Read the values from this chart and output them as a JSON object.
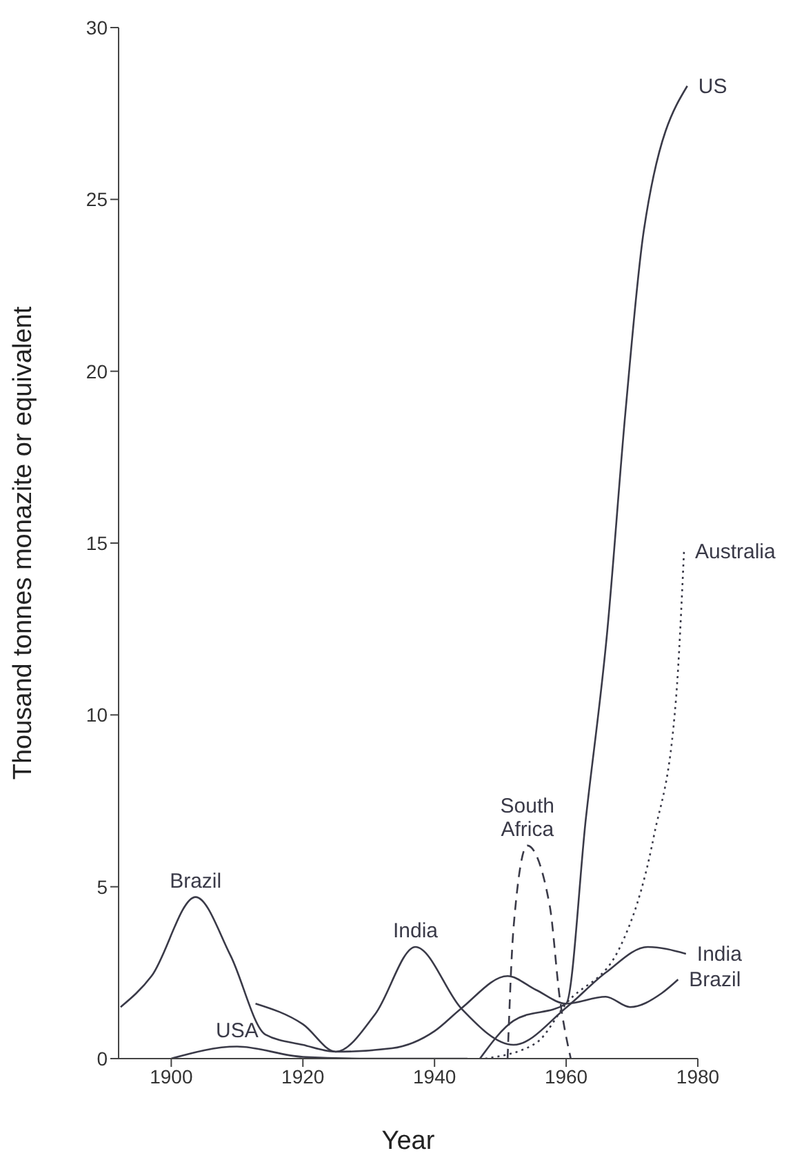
{
  "chart_data": {
    "type": "line",
    "xlabel": "Year",
    "ylabel": "Thousand tonnes monazite or equivalent",
    "xlim": [
      1892,
      1980
    ],
    "xticks": [
      1900,
      1920,
      1940,
      1960,
      1980
    ],
    "ylim": [
      0,
      30
    ],
    "yticks": [
      0,
      5,
      10,
      15,
      20,
      25,
      30
    ],
    "marker": "none",
    "series": [
      {
        "name": "Brazil",
        "color": "#3a3a48",
        "line_style": "solid",
        "x": [
          1892.3,
          1897,
          1903.7,
          1909,
          1914.3,
          1920,
          1925,
          1933.5,
          1940,
          1944,
          1951.1,
          1955.4,
          1960,
          1966,
          1969.7,
          1974.5,
          1977
        ],
        "values": [
          1.5,
          2.4,
          4.7,
          3,
          0.7,
          0.4,
          0.2,
          0.3,
          0.8,
          1.45,
          2.4,
          2,
          1.6,
          1.8,
          1.5,
          1.9,
          2.3
        ]
      },
      {
        "name": "USA",
        "color": "#3a3a48",
        "line_style": "solid",
        "x": [
          1900,
          1910,
          1920,
          1930,
          1945
        ],
        "values": [
          0,
          0.35,
          0.05,
          0,
          0
        ]
      },
      {
        "name": "India",
        "color": "#3a3a48",
        "line_style": "solid",
        "x": [
          1912.8,
          1920,
          1925,
          1931,
          1937.1,
          1944.1,
          1952,
          1960.1,
          1966,
          1972.4,
          1978.2
        ],
        "values": [
          1.6,
          1,
          0.2,
          1.3,
          3.25,
          1.45,
          0.4,
          1.5,
          2.5,
          3.25,
          3.05
        ]
      },
      {
        "name": "US",
        "color": "#3a3a48",
        "line_style": "solid",
        "x": [
          1946.9,
          1952,
          1960,
          1963,
          1966.2,
          1969,
          1971.8,
          1978.4
        ],
        "values": [
          0,
          1.1,
          1.6,
          7,
          12.35,
          18.8,
          24.1,
          28.3
        ]
      },
      {
        "name": "South Africa",
        "color": "#3a3a48",
        "line_style": "dashed",
        "x": [
          1951.1,
          1952,
          1954.1,
          1957.5,
          1959,
          1960.7
        ],
        "values": [
          0,
          3.8,
          6.2,
          4.45,
          1.8,
          0
        ]
      },
      {
        "name": "Australia",
        "color": "#3a3a48",
        "line_style": "dotted",
        "x": [
          1947.7,
          1955.4,
          1960,
          1968.2,
          1973.3,
          1976.7,
          1977.9
        ],
        "values": [
          0,
          0.45,
          1.6,
          3.25,
          6.45,
          10.5,
          14.75
        ]
      }
    ]
  }
}
